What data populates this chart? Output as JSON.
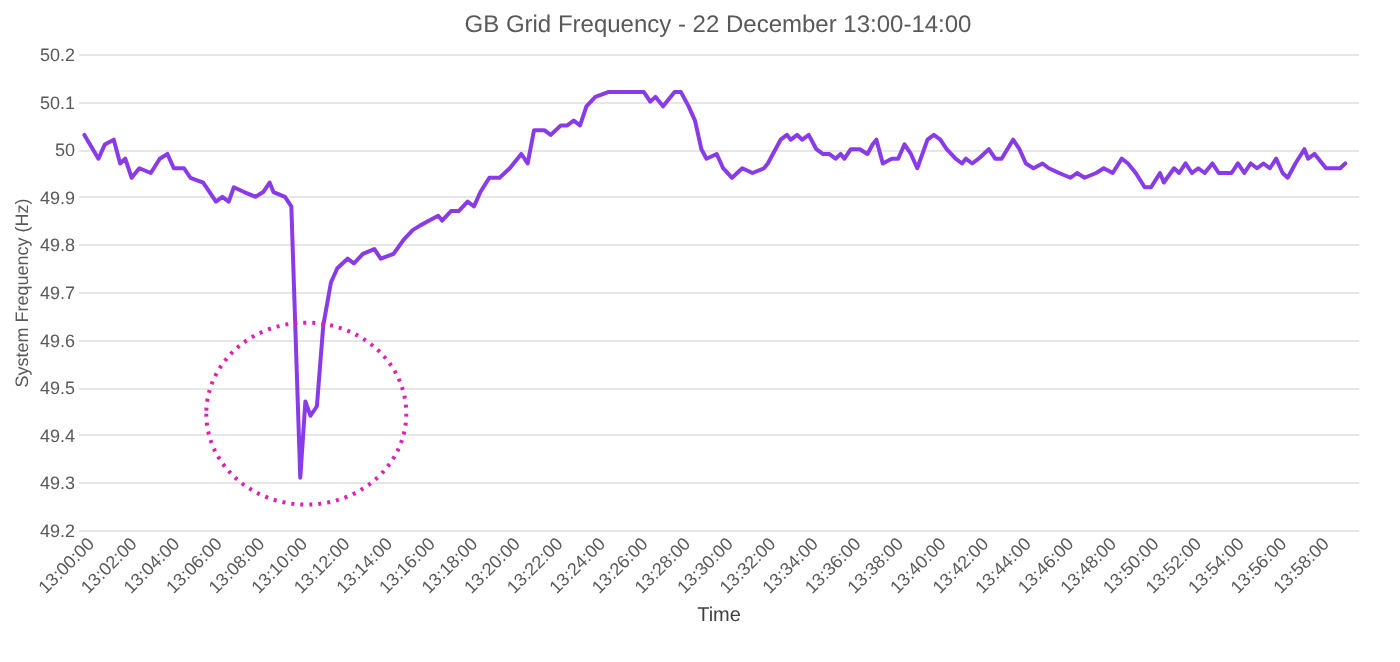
{
  "chart_data": {
    "type": "line",
    "title": "GB Grid Frequency - 22 December 13:00-14:00",
    "xlabel": "Time",
    "ylabel": "System Frequency (Hz)",
    "xlim": [
      12.995,
      13.997
    ],
    "ylim": [
      49.2,
      50.2
    ],
    "yticks": [
      49.2,
      49.3,
      49.4,
      49.5,
      49.6,
      49.7,
      49.8,
      49.9,
      50,
      50.1,
      50.2
    ],
    "xticks": [
      {
        "value": 13.0,
        "label": "13:00:00"
      },
      {
        "value": 13.0333,
        "label": "13:02:00"
      },
      {
        "value": 13.0667,
        "label": "13:04:00"
      },
      {
        "value": 13.1,
        "label": "13:06:00"
      },
      {
        "value": 13.1333,
        "label": "13:08:00"
      },
      {
        "value": 13.1667,
        "label": "13:10:00"
      },
      {
        "value": 13.2,
        "label": "13:12:00"
      },
      {
        "value": 13.2333,
        "label": "13:14:00"
      },
      {
        "value": 13.2667,
        "label": "13:16:00"
      },
      {
        "value": 13.3,
        "label": "13:18:00"
      },
      {
        "value": 13.3333,
        "label": "13:20:00"
      },
      {
        "value": 13.3667,
        "label": "13:22:00"
      },
      {
        "value": 13.4,
        "label": "13:24:00"
      },
      {
        "value": 13.4333,
        "label": "13:26:00"
      },
      {
        "value": 13.4667,
        "label": "13:28:00"
      },
      {
        "value": 13.5,
        "label": "13:30:00"
      },
      {
        "value": 13.5333,
        "label": "13:32:00"
      },
      {
        "value": 13.5667,
        "label": "13:34:00"
      },
      {
        "value": 13.6,
        "label": "13:36:00"
      },
      {
        "value": 13.6333,
        "label": "13:38:00"
      },
      {
        "value": 13.6667,
        "label": "13:40:00"
      },
      {
        "value": 13.7,
        "label": "13:42:00"
      },
      {
        "value": 13.7333,
        "label": "13:44:00"
      },
      {
        "value": 13.7667,
        "label": "13:46:00"
      },
      {
        "value": 13.8,
        "label": "13:48:00"
      },
      {
        "value": 13.8333,
        "label": "13:50:00"
      },
      {
        "value": 13.8667,
        "label": "13:52:00"
      },
      {
        "value": 13.9,
        "label": "13:54:00"
      },
      {
        "value": 13.9333,
        "label": "13:56:00"
      },
      {
        "value": 13.9667,
        "label": "13:58:00"
      }
    ],
    "grid": "y",
    "marker": "none",
    "line_style": "solid",
    "series": [
      {
        "color": "#8a3be8",
        "x": [
          13.0,
          13.011,
          13.016,
          13.023,
          13.028,
          13.032,
          13.037,
          13.043,
          13.052,
          13.059,
          13.065,
          13.07,
          13.078,
          13.083,
          13.093,
          13.103,
          13.108,
          13.113,
          13.117,
          13.125,
          13.134,
          13.14,
          13.145,
          13.148,
          13.157,
          13.162,
          13.169,
          13.173,
          13.177,
          13.182,
          13.187,
          13.193,
          13.198,
          13.202,
          13.206,
          13.211,
          13.218,
          13.227,
          13.232,
          13.242,
          13.25,
          13.257,
          13.263,
          13.27,
          13.277,
          13.28,
          13.287,
          13.293,
          13.3,
          13.305,
          13.31,
          13.317,
          13.325,
          13.333,
          13.342,
          13.347,
          13.352,
          13.36,
          13.365,
          13.373,
          13.378,
          13.383,
          13.388,
          13.393,
          13.4,
          13.41,
          13.42,
          13.427,
          13.432,
          13.438,
          13.443,
          13.447,
          13.453,
          13.462,
          13.467,
          13.473,
          13.478,
          13.483,
          13.487,
          13.495,
          13.5,
          13.507,
          13.515,
          13.523,
          13.532,
          13.535,
          13.545,
          13.55,
          13.553,
          13.558,
          13.562,
          13.567,
          13.573,
          13.578,
          13.583,
          13.588,
          13.592,
          13.595,
          13.6,
          13.607,
          13.613,
          13.617,
          13.62,
          13.625,
          13.632,
          13.637,
          13.642,
          13.647,
          13.652,
          13.66,
          13.665,
          13.67,
          13.675,
          13.682,
          13.687,
          13.69,
          13.695,
          13.7,
          13.708,
          13.713,
          13.718,
          13.727,
          13.732,
          13.737,
          13.743,
          13.75,
          13.755,
          13.763,
          13.772,
          13.777,
          13.783,
          13.792,
          13.798,
          13.805,
          13.812,
          13.817,
          13.823,
          13.83,
          13.835,
          13.842,
          13.845,
          13.853,
          13.857,
          13.862,
          13.867,
          13.872,
          13.877,
          13.883,
          13.888,
          13.898,
          13.903,
          13.908,
          13.913,
          13.918,
          13.923,
          13.928,
          13.933,
          13.938,
          13.942,
          13.948,
          13.955,
          13.958,
          13.963,
          13.972,
          13.98,
          13.983,
          13.987
        ],
        "values": [
          50.03,
          49.98,
          50.01,
          50.02,
          49.97,
          49.98,
          49.94,
          49.96,
          49.95,
          49.98,
          49.99,
          49.96,
          49.96,
          49.94,
          49.93,
          49.89,
          49.9,
          49.89,
          49.92,
          49.91,
          49.9,
          49.91,
          49.93,
          49.91,
          49.9,
          49.88,
          49.31,
          49.47,
          49.44,
          49.46,
          49.63,
          49.72,
          49.75,
          49.76,
          49.77,
          49.76,
          49.78,
          49.79,
          49.77,
          49.78,
          49.81,
          49.83,
          49.84,
          49.85,
          49.86,
          49.85,
          49.87,
          49.87,
          49.89,
          49.88,
          49.91,
          49.94,
          49.94,
          49.96,
          49.99,
          49.97,
          50.04,
          50.04,
          50.03,
          50.05,
          50.05,
          50.06,
          50.05,
          50.09,
          50.11,
          50.12,
          50.12,
          50.12,
          50.12,
          50.12,
          50.1,
          50.11,
          50.09,
          50.12,
          50.12,
          50.09,
          50.06,
          50.0,
          49.98,
          49.99,
          49.96,
          49.94,
          49.96,
          49.95,
          49.96,
          49.97,
          50.02,
          50.03,
          50.02,
          50.03,
          50.02,
          50.03,
          50.0,
          49.99,
          49.99,
          49.98,
          49.99,
          49.98,
          50.0,
          50.0,
          49.99,
          50.01,
          50.02,
          49.97,
          49.98,
          49.98,
          50.01,
          49.99,
          49.96,
          50.02,
          50.03,
          50.02,
          50.0,
          49.98,
          49.97,
          49.98,
          49.97,
          49.98,
          50.0,
          49.98,
          49.98,
          50.02,
          50.0,
          49.97,
          49.96,
          49.97,
          49.96,
          49.95,
          49.94,
          49.95,
          49.94,
          49.95,
          49.96,
          49.95,
          49.98,
          49.97,
          49.95,
          49.92,
          49.92,
          49.95,
          49.93,
          49.96,
          49.95,
          49.97,
          49.95,
          49.96,
          49.95,
          49.97,
          49.95,
          49.95,
          49.97,
          49.95,
          49.97,
          49.96,
          49.97,
          49.96,
          49.98,
          49.95,
          49.94,
          49.97,
          50.0,
          49.98,
          49.99,
          49.96,
          49.96,
          49.96,
          49.97
        ]
      }
    ]
  }
}
